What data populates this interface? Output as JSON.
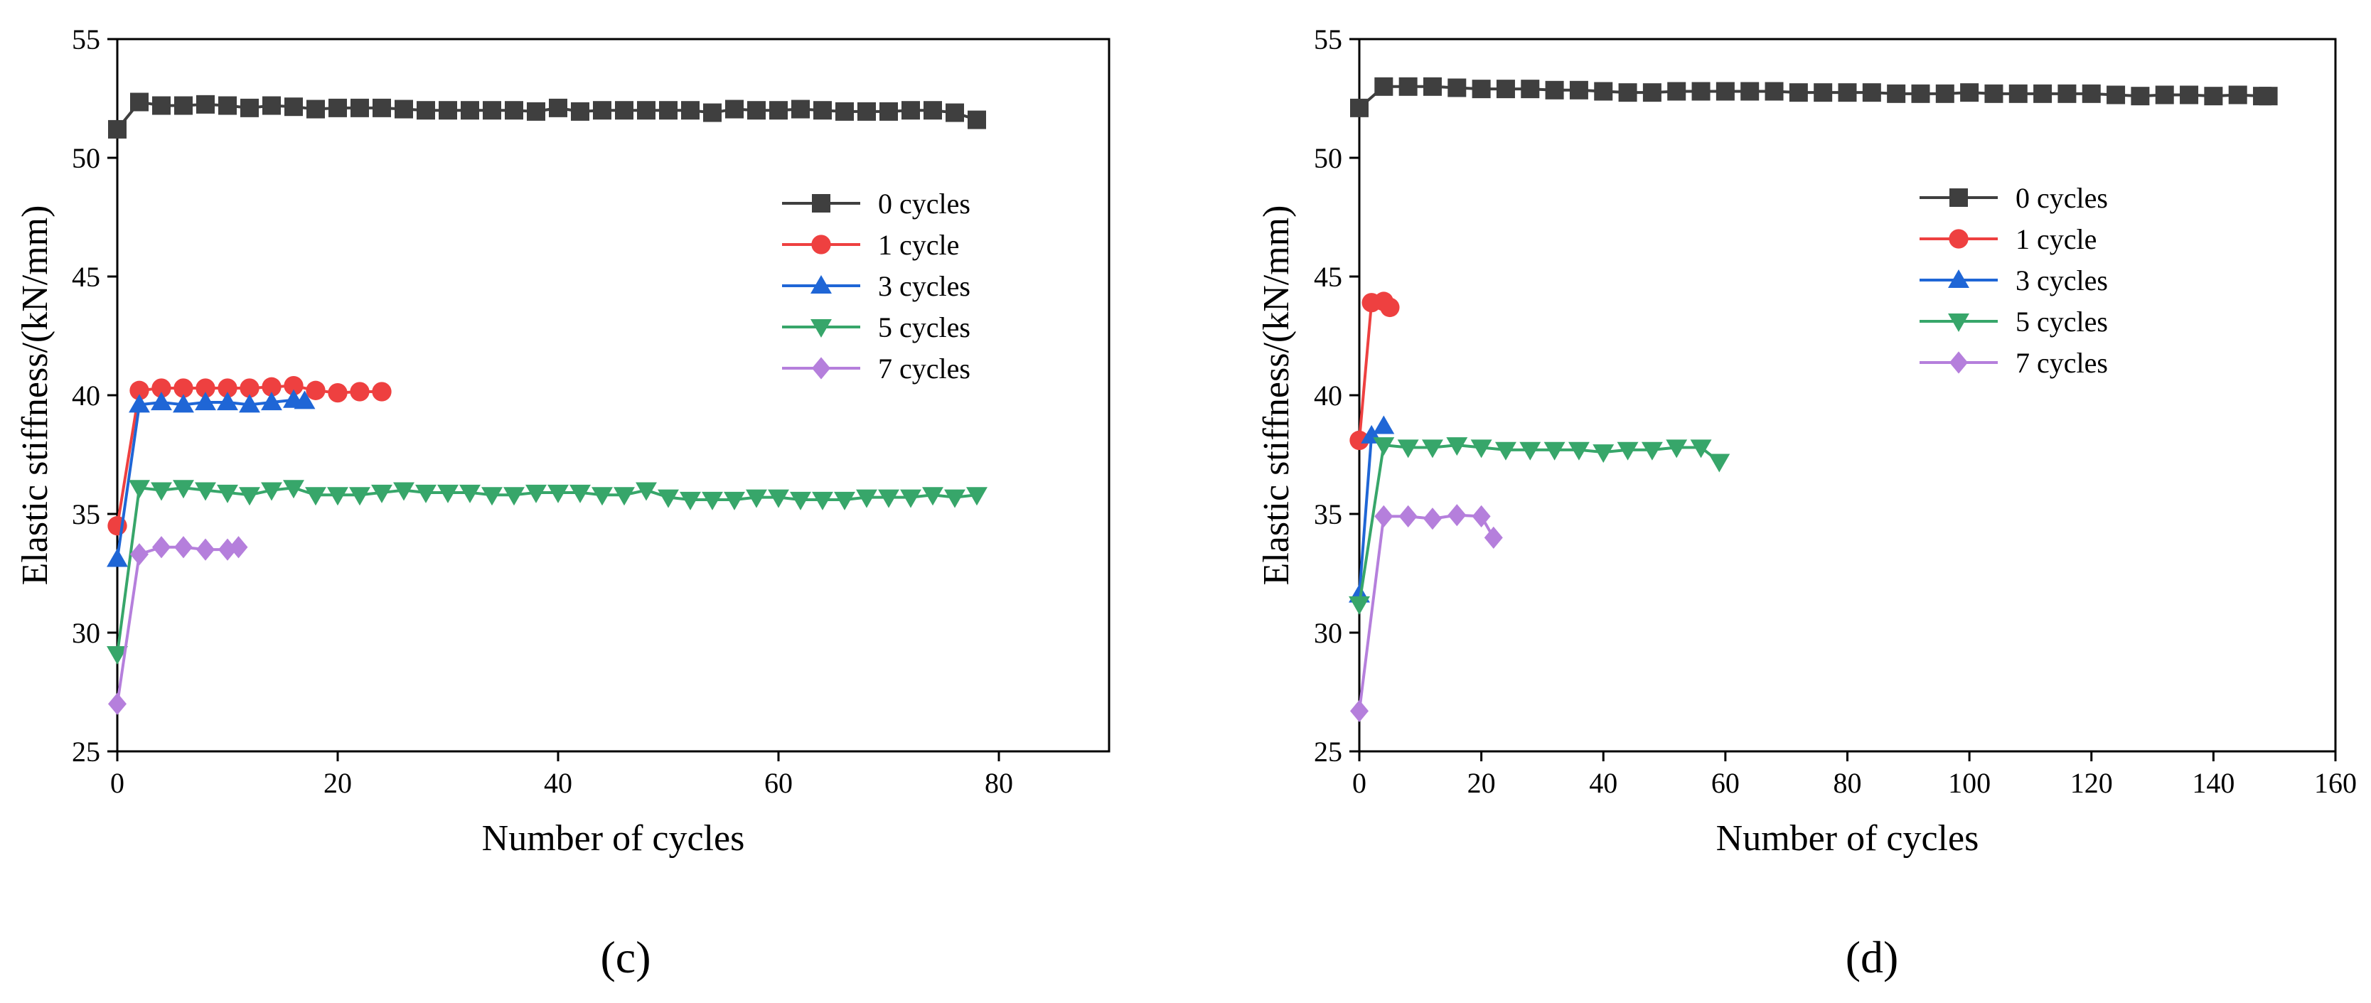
{
  "chart_data": [
    {
      "type": "line",
      "panel_label": "(c)",
      "xlabel": "Number of cycles",
      "ylabel": "Elastic stiffness/(kN/mm)",
      "xlim": [
        0,
        90
      ],
      "ylim": [
        25,
        55
      ],
      "xticks": [
        0,
        20,
        40,
        60,
        80
      ],
      "yticks": [
        25,
        30,
        35,
        40,
        45,
        50,
        55
      ],
      "legend_position": "top-right",
      "series": [
        {
          "name": "0 cycles",
          "color": "#3f3f3f",
          "marker": "square",
          "x": [
            0,
            2,
            4,
            6,
            8,
            10,
            12,
            14,
            16,
            18,
            20,
            22,
            24,
            26,
            28,
            30,
            32,
            34,
            36,
            38,
            40,
            42,
            44,
            46,
            48,
            50,
            52,
            54,
            56,
            58,
            60,
            62,
            64,
            66,
            68,
            70,
            72,
            74,
            76,
            78
          ],
          "y": [
            51.2,
            52.35,
            52.2,
            52.2,
            52.25,
            52.2,
            52.1,
            52.2,
            52.15,
            52.05,
            52.1,
            52.1,
            52.1,
            52.05,
            52.0,
            52.0,
            52.0,
            52.0,
            52.0,
            51.95,
            52.1,
            51.95,
            52.0,
            52.0,
            52.0,
            52.0,
            52.0,
            51.9,
            52.05,
            52.0,
            52.0,
            52.05,
            52.0,
            51.95,
            51.95,
            51.95,
            52.0,
            52.0,
            51.9,
            51.6
          ]
        },
        {
          "name": "1 cycle",
          "color": "#ee4040",
          "marker": "circle",
          "x": [
            0,
            2,
            4,
            6,
            8,
            10,
            12,
            14,
            16,
            18,
            20,
            22,
            24
          ],
          "y": [
            34.5,
            40.2,
            40.3,
            40.3,
            40.3,
            40.3,
            40.3,
            40.35,
            40.4,
            40.2,
            40.1,
            40.15,
            40.15
          ]
        },
        {
          "name": "3 cycles",
          "color": "#1f66d6",
          "marker": "triangle-up",
          "x": [
            0,
            2,
            4,
            6,
            8,
            10,
            12,
            14,
            16,
            17
          ],
          "y": [
            33.1,
            39.6,
            39.7,
            39.6,
            39.7,
            39.7,
            39.6,
            39.7,
            39.8,
            39.75
          ]
        },
        {
          "name": "5 cycles",
          "color": "#37a66a",
          "marker": "triangle-down",
          "x": [
            0,
            2,
            4,
            6,
            8,
            10,
            12,
            14,
            16,
            18,
            20,
            22,
            24,
            26,
            28,
            30,
            32,
            34,
            36,
            38,
            40,
            42,
            44,
            46,
            48,
            50,
            52,
            54,
            56,
            58,
            60,
            62,
            64,
            66,
            68,
            70,
            72,
            74,
            76,
            78
          ],
          "y": [
            29.1,
            36.1,
            36.0,
            36.1,
            36.0,
            35.9,
            35.8,
            36.0,
            36.1,
            35.8,
            35.8,
            35.8,
            35.9,
            36.0,
            35.9,
            35.9,
            35.9,
            35.8,
            35.8,
            35.9,
            35.9,
            35.9,
            35.8,
            35.8,
            36.0,
            35.7,
            35.6,
            35.6,
            35.6,
            35.7,
            35.7,
            35.6,
            35.6,
            35.6,
            35.7,
            35.7,
            35.7,
            35.8,
            35.7,
            35.8
          ]
        },
        {
          "name": "7 cycles",
          "color": "#b57fdc",
          "marker": "diamond",
          "x": [
            0,
            2,
            4,
            6,
            8,
            10,
            11
          ],
          "y": [
            27.0,
            33.3,
            33.6,
            33.6,
            33.5,
            33.5,
            33.6
          ]
        }
      ]
    },
    {
      "type": "line",
      "panel_label": "(d)",
      "xlabel": "Number of cycles",
      "ylabel": "Elastic stiffness/(kN/mm)",
      "xlim": [
        0,
        160
      ],
      "ylim": [
        25,
        55
      ],
      "xticks": [
        0,
        20,
        40,
        60,
        80,
        100,
        120,
        140,
        160
      ],
      "yticks": [
        25,
        30,
        35,
        40,
        45,
        50,
        55
      ],
      "legend_position": "top-right",
      "series": [
        {
          "name": "0 cycles",
          "color": "#3f3f3f",
          "marker": "square",
          "x": [
            0,
            4,
            8,
            12,
            16,
            20,
            24,
            28,
            32,
            36,
            40,
            44,
            48,
            52,
            56,
            60,
            64,
            68,
            72,
            76,
            80,
            84,
            88,
            92,
            96,
            100,
            104,
            108,
            112,
            116,
            120,
            124,
            128,
            132,
            136,
            140,
            144,
            148,
            149
          ],
          "y": [
            52.1,
            53.0,
            53.0,
            53.0,
            52.95,
            52.9,
            52.9,
            52.9,
            52.85,
            52.85,
            52.8,
            52.75,
            52.75,
            52.8,
            52.8,
            52.8,
            52.8,
            52.8,
            52.75,
            52.75,
            52.75,
            52.75,
            52.7,
            52.7,
            52.7,
            52.75,
            52.7,
            52.7,
            52.7,
            52.7,
            52.7,
            52.65,
            52.6,
            52.65,
            52.65,
            52.6,
            52.65,
            52.6,
            52.6
          ]
        },
        {
          "name": "1 cycle",
          "color": "#ee4040",
          "marker": "circle",
          "x": [
            0,
            2,
            4,
            5
          ],
          "y": [
            38.1,
            43.9,
            43.95,
            43.7
          ]
        },
        {
          "name": "3 cycles",
          "color": "#1f66d6",
          "marker": "triangle-up",
          "x": [
            0,
            2,
            4
          ],
          "y": [
            31.6,
            38.3,
            38.7
          ]
        },
        {
          "name": "5 cycles",
          "color": "#37a66a",
          "marker": "triangle-down",
          "x": [
            0,
            4,
            8,
            12,
            16,
            20,
            24,
            28,
            32,
            36,
            40,
            44,
            48,
            52,
            56,
            59
          ],
          "y": [
            31.2,
            37.9,
            37.8,
            37.8,
            37.9,
            37.8,
            37.7,
            37.7,
            37.7,
            37.7,
            37.6,
            37.7,
            37.7,
            37.8,
            37.8,
            37.2
          ]
        },
        {
          "name": "7 cycles",
          "color": "#b57fdc",
          "marker": "diamond",
          "x": [
            0,
            4,
            8,
            12,
            16,
            20,
            22
          ],
          "y": [
            26.7,
            34.9,
            34.9,
            34.8,
            34.95,
            34.9,
            34.0
          ]
        }
      ]
    }
  ]
}
